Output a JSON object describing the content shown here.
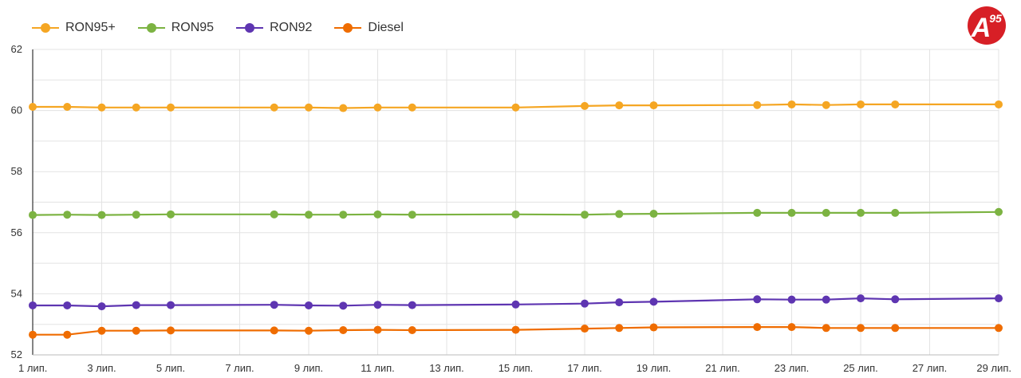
{
  "logo": {
    "text": "A",
    "superscript": "95",
    "color": "#d71f26"
  },
  "chart_data": {
    "type": "line",
    "title": "",
    "xlabel": "",
    "ylabel": "",
    "ylim": [
      52,
      62
    ],
    "xlim": [
      1,
      29
    ],
    "y_ticks": [
      "52",
      "54",
      "56",
      "58",
      "60",
      "62"
    ],
    "x_ticks": [
      {
        "day": 1,
        "label": "1 лип."
      },
      {
        "day": 3,
        "label": "3 лип."
      },
      {
        "day": 5,
        "label": "5 лип."
      },
      {
        "day": 7,
        "label": "7 лип."
      },
      {
        "day": 9,
        "label": "9 лип."
      },
      {
        "day": 11,
        "label": "11 лип."
      },
      {
        "day": 13,
        "label": "13 лип."
      },
      {
        "day": 15,
        "label": "15 лип."
      },
      {
        "day": 17,
        "label": "17 лип."
      },
      {
        "day": 19,
        "label": "19 лип."
      },
      {
        "day": 21,
        "label": "21 лип."
      },
      {
        "day": 23,
        "label": "23 лип."
      },
      {
        "day": 25,
        "label": "25 лип."
      },
      {
        "day": 27,
        "label": "27 лип."
      },
      {
        "day": 29,
        "label": "29 лип."
      }
    ],
    "grid": true,
    "legend_position": "top-left",
    "x": [
      1,
      2,
      3,
      4,
      5,
      8,
      9,
      10,
      11,
      12,
      15,
      17,
      18,
      19,
      22,
      23,
      24,
      25,
      26,
      29
    ],
    "series": [
      {
        "name": "RON95+",
        "color": "#f5a623",
        "values": [
          60.12,
          60.12,
          60.1,
          60.1,
          60.1,
          60.1,
          60.1,
          60.08,
          60.1,
          60.1,
          60.1,
          60.15,
          60.17,
          60.17,
          60.18,
          60.2,
          60.18,
          60.2,
          60.2,
          60.2
        ]
      },
      {
        "name": "RON95",
        "color": "#7cb342",
        "values": [
          56.58,
          56.59,
          56.58,
          56.59,
          56.6,
          56.6,
          56.59,
          56.59,
          56.6,
          56.59,
          56.6,
          56.59,
          56.61,
          56.62,
          56.65,
          56.65,
          56.65,
          56.65,
          56.65,
          56.68
        ]
      },
      {
        "name": "RON92",
        "color": "#5e35b1",
        "values": [
          53.62,
          53.62,
          53.59,
          53.63,
          53.63,
          53.64,
          53.62,
          53.61,
          53.64,
          53.63,
          53.65,
          53.68,
          53.72,
          53.74,
          53.82,
          53.81,
          53.81,
          53.85,
          53.82,
          53.85
        ]
      },
      {
        "name": "Diesel",
        "color": "#ef6c00",
        "values": [
          52.66,
          52.66,
          52.79,
          52.79,
          52.8,
          52.8,
          52.79,
          52.81,
          52.82,
          52.81,
          52.82,
          52.86,
          52.88,
          52.9,
          52.91,
          52.91,
          52.88,
          52.88,
          52.88,
          52.88
        ]
      }
    ]
  }
}
